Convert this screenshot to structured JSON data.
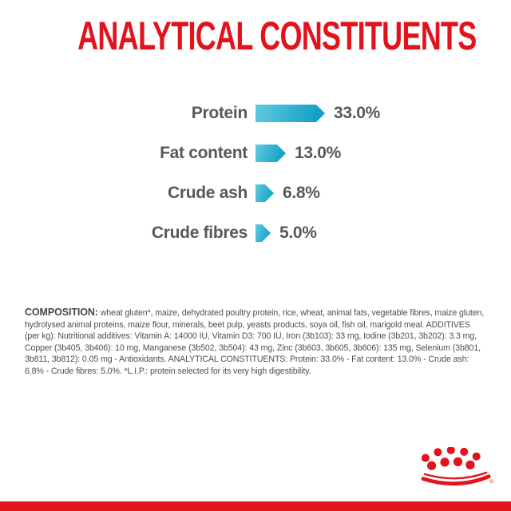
{
  "title": "ANALYTICAL CONSTITUENTS",
  "colors": {
    "brand_red": "#e2131c",
    "label_gray": "#57585a",
    "bar_gradient_light": "#63cbde",
    "bar_gradient_dark": "#0f9fc6"
  },
  "chart_data": {
    "type": "bar",
    "orientation": "horizontal",
    "categories": [
      "Protein",
      "Fat content",
      "Crude ash",
      "Crude fibres"
    ],
    "values": [
      33.0,
      13.0,
      6.8,
      5.0
    ],
    "value_labels": [
      "33.0%",
      "13.0%",
      "6.8%",
      "5.0%"
    ],
    "unit": "%",
    "title": "ANALYTICAL CONSTITUENTS",
    "bar_shape": "right-pointing-arrow",
    "legend": "none",
    "grid": false
  },
  "composition": {
    "label": "COMPOSITION:",
    "body": " wheat gluten*, maize, dehydrated poultry protein, rice, wheat, animal fats, vegetable fibres, maize gluten, hydrolysed animal proteins, maize flour, minerals, beet pulp, yeasts products, soya oil, fish oil, marigold meal. ADDITIVES (per kg): Nutritional additives: Vitamin A: 14000 IU, Vitamin D3: 700 IU, Iron (3b103): 33 mg, Iodine (3b201, 3b202): 3.3 mg, Copper (3b405, 3b406): 10 mg, Manganese (3b502, 3b504): 43 mg, Zinc (3b603, 3b605, 3b606): 135 mg, Selenium (3b801, 3b811, 3b812): 0.05 mg - Antioxidants. ANALYTICAL CONSTITUENTS: Protein: 33.0% - Fat content: 13.0% - Crude ash: 6.8% - Crude fibres: 5.0%. *L.I.P.: protein selected for its very high digestibility."
  },
  "footer": {
    "logo_registered_mark": "®"
  }
}
